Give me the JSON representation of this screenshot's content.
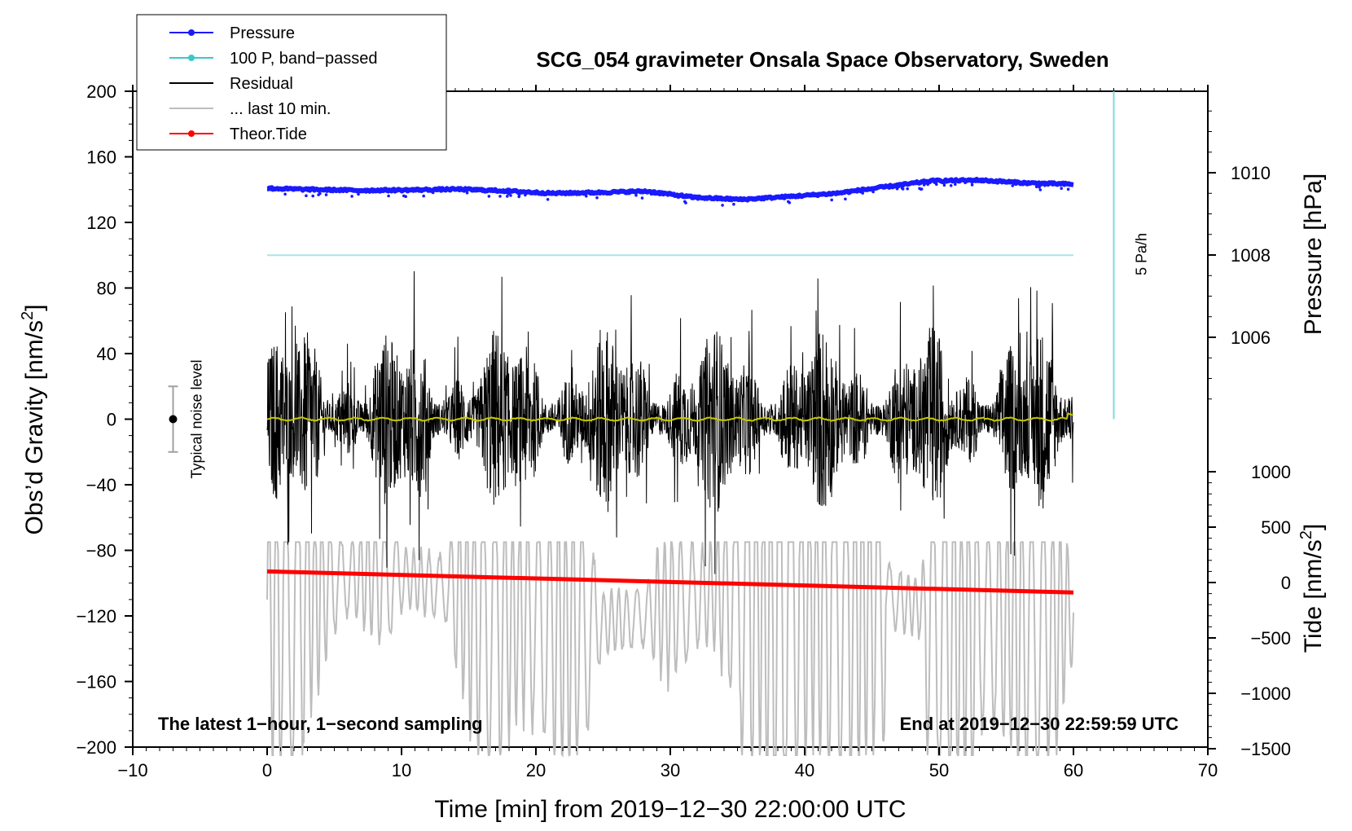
{
  "chart_data": {
    "type": "line",
    "title": "SCG_054 gravimeter Onsala Space Observatory, Sweden",
    "xlabel": "Time [min] from 2019−12−30 22:00:00 UTC",
    "xlim": [
      -10,
      70
    ],
    "x_ticks": [
      "−10",
      "0",
      "10",
      "20",
      "30",
      "40",
      "50",
      "60",
      "70"
    ],
    "left_axis": {
      "label_main": "Obs’d Gravity [nm/s",
      "label_sup": "2",
      "label_end": "]",
      "ylim": [
        -200,
        200
      ],
      "ticks": [
        "200",
        "160",
        "120",
        "80",
        "40",
        "0",
        "−40",
        "−80",
        "−120",
        "−160",
        "−200"
      ]
    },
    "pressure_axis": {
      "label": "Pressure [hPa]",
      "ticks": [
        "1010",
        "1008",
        "1006"
      ],
      "tick_values": [
        1010,
        1008,
        1006
      ]
    },
    "tide_axis": {
      "label_main": "Tide [nm/s",
      "label_sup": "2",
      "label_end": "]",
      "ticks": [
        "1000",
        "500",
        "0",
        "−500",
        "−1000",
        "−1500"
      ],
      "tick_values": [
        1000,
        500,
        0,
        -500,
        -1000,
        -1500
      ]
    },
    "legend": [
      {
        "label": "Pressure",
        "color": "#1a1aff",
        "marker": true
      },
      {
        "label": "100 P, band−passed",
        "color": "#3cc8c8",
        "marker": true
      },
      {
        "label": "Residual",
        "color": "#000000",
        "marker": false
      },
      {
        "label": "... last 10 min.",
        "color": "#bdbdbd",
        "marker": false
      },
      {
        "label": "Theor.Tide",
        "color": "#ff0000",
        "marker": true
      }
    ],
    "annotations": {
      "noise_label": "Typical noise level",
      "noise_range": [
        -20,
        20
      ],
      "noise_x": -7,
      "rate_label": "5 Pa/h",
      "rate_x": 63,
      "rate_range": [
        0,
        200
      ],
      "bottom_left": "The latest 1−hour, 1−second sampling",
      "bottom_right": "End at 2019−12−30 22:59:59 UTC"
    },
    "series": [
      {
        "name": "Pressure",
        "color": "#1a1aff",
        "unit": "hPa",
        "x_range": [
          0,
          60
        ],
        "values": [
          1009.62,
          1009.59,
          1009.57,
          1009.58,
          1009.6,
          1009.56,
          1009.5,
          1009.52,
          1009.55,
          1009.4,
          1009.35,
          1009.42,
          1009.5,
          1009.65,
          1009.8,
          1009.82,
          1009.75,
          1009.72
        ]
      },
      {
        "name": "100 P, band-passed",
        "color": "#3cc8c8",
        "x_range": [
          0,
          60
        ],
        "constant": 100
      },
      {
        "name": "Residual",
        "color": "#000000",
        "unit": "nm/s2",
        "x_range": [
          0,
          60
        ],
        "amplitude_range": [
          -95,
          95
        ]
      },
      {
        "name": "Residual smoothed",
        "color": "#c8c800",
        "unit": "nm/s2",
        "x_range": [
          0,
          60
        ],
        "level": 0
      },
      {
        "name": "... last 10 min.",
        "color": "#bdbdbd",
        "unit": "nm/s2",
        "x_range": [
          0,
          60
        ],
        "amplitude_range": [
          -1500,
          250
        ]
      },
      {
        "name": "Theor.Tide",
        "color": "#ff0000",
        "unit": "nm/s2",
        "x": [
          0,
          60
        ],
        "values": [
          100,
          -90
        ]
      }
    ]
  }
}
